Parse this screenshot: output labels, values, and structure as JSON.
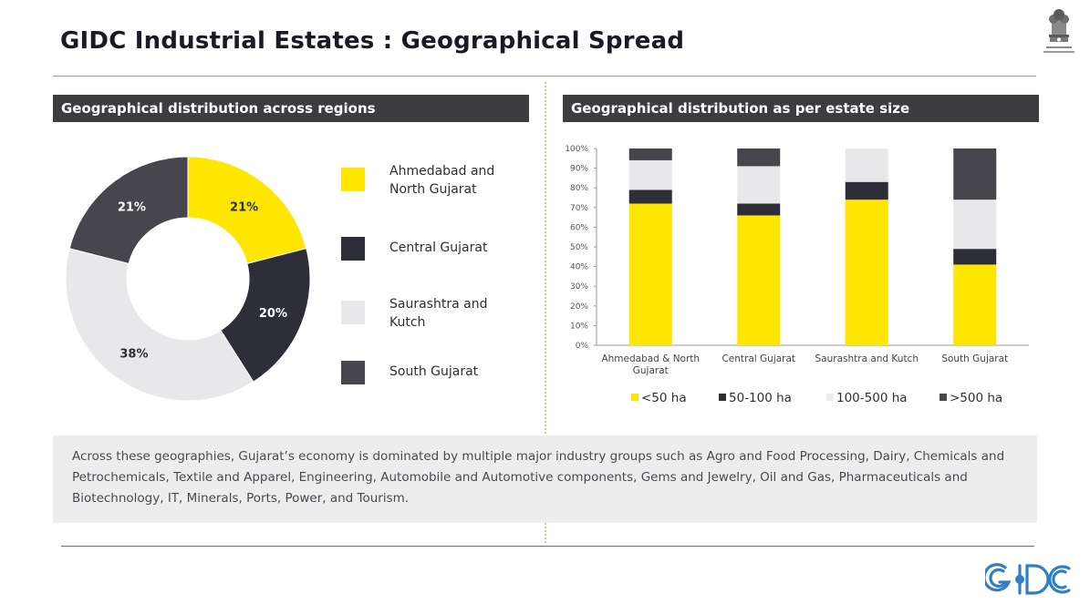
{
  "page": {
    "title": "GIDC Industrial Estates : Geographical Spread",
    "left_header": "Geographical distribution across regions",
    "right_header": "Geographical distribution as per estate size",
    "footer_text": "Across these geographies, Gujarat’s economy is dominated by multiple major industry groups such as Agro and Food Processing, Dairy, Chemicals and Petrochemicals, Textile and Apparel, Engineering, Automobile and Automotive components, Gems and Jewelry, Oil and Gas, Pharmaceuticals and Biotechnology, IT, Minerals, Ports, Power, and Tourism.",
    "emblem_text": "सत्यमेव जयते / गुजरात सरकार",
    "logo_text": "GIDC"
  },
  "colors": {
    "yellow": "#ffe600",
    "dark": "#2e2e38",
    "light": "#e8e8ea",
    "gray": "#46464c",
    "header_bg": "#3c3c41"
  },
  "chart_data": [
    {
      "type": "pie",
      "style": "donut",
      "categories": [
        "Ahmedabad and North Gujarat",
        "Central Gujarat",
        "Saurashtra and Kutch",
        "South Gujarat"
      ],
      "values": [
        21,
        20,
        38,
        21
      ],
      "labels": [
        "21%",
        "20%",
        "38%",
        "21%"
      ],
      "colors": [
        "#ffe600",
        "#2e2e38",
        "#e8e8ea",
        "#46464c"
      ],
      "legend_position": "right"
    },
    {
      "type": "bar",
      "stacked": true,
      "categories": [
        "Ahmedabad & North Gujarat",
        "Central Gujarat",
        "Saurashtra and Kutch",
        "South Gujarat"
      ],
      "series": [
        {
          "name": "<50 ha",
          "color": "#ffe600",
          "values": [
            72,
            66,
            74,
            41
          ]
        },
        {
          "name": "50-100 ha",
          "color": "#2e2e38",
          "values": [
            7,
            6,
            9,
            8
          ]
        },
        {
          "name": "100-500 ha",
          "color": "#e8e8ea",
          "values": [
            15,
            19,
            17,
            25
          ]
        },
        {
          "name": ">500 ha",
          "color": "#46464c",
          "values": [
            6,
            9,
            0,
            26
          ]
        }
      ],
      "ylim": [
        0,
        100
      ],
      "yticks": [
        "0%",
        "10%",
        "20%",
        "30%",
        "40%",
        "50%",
        "60%",
        "70%",
        "80%",
        "90%",
        "100%"
      ],
      "legend_position": "bottom",
      "grid": false
    }
  ]
}
